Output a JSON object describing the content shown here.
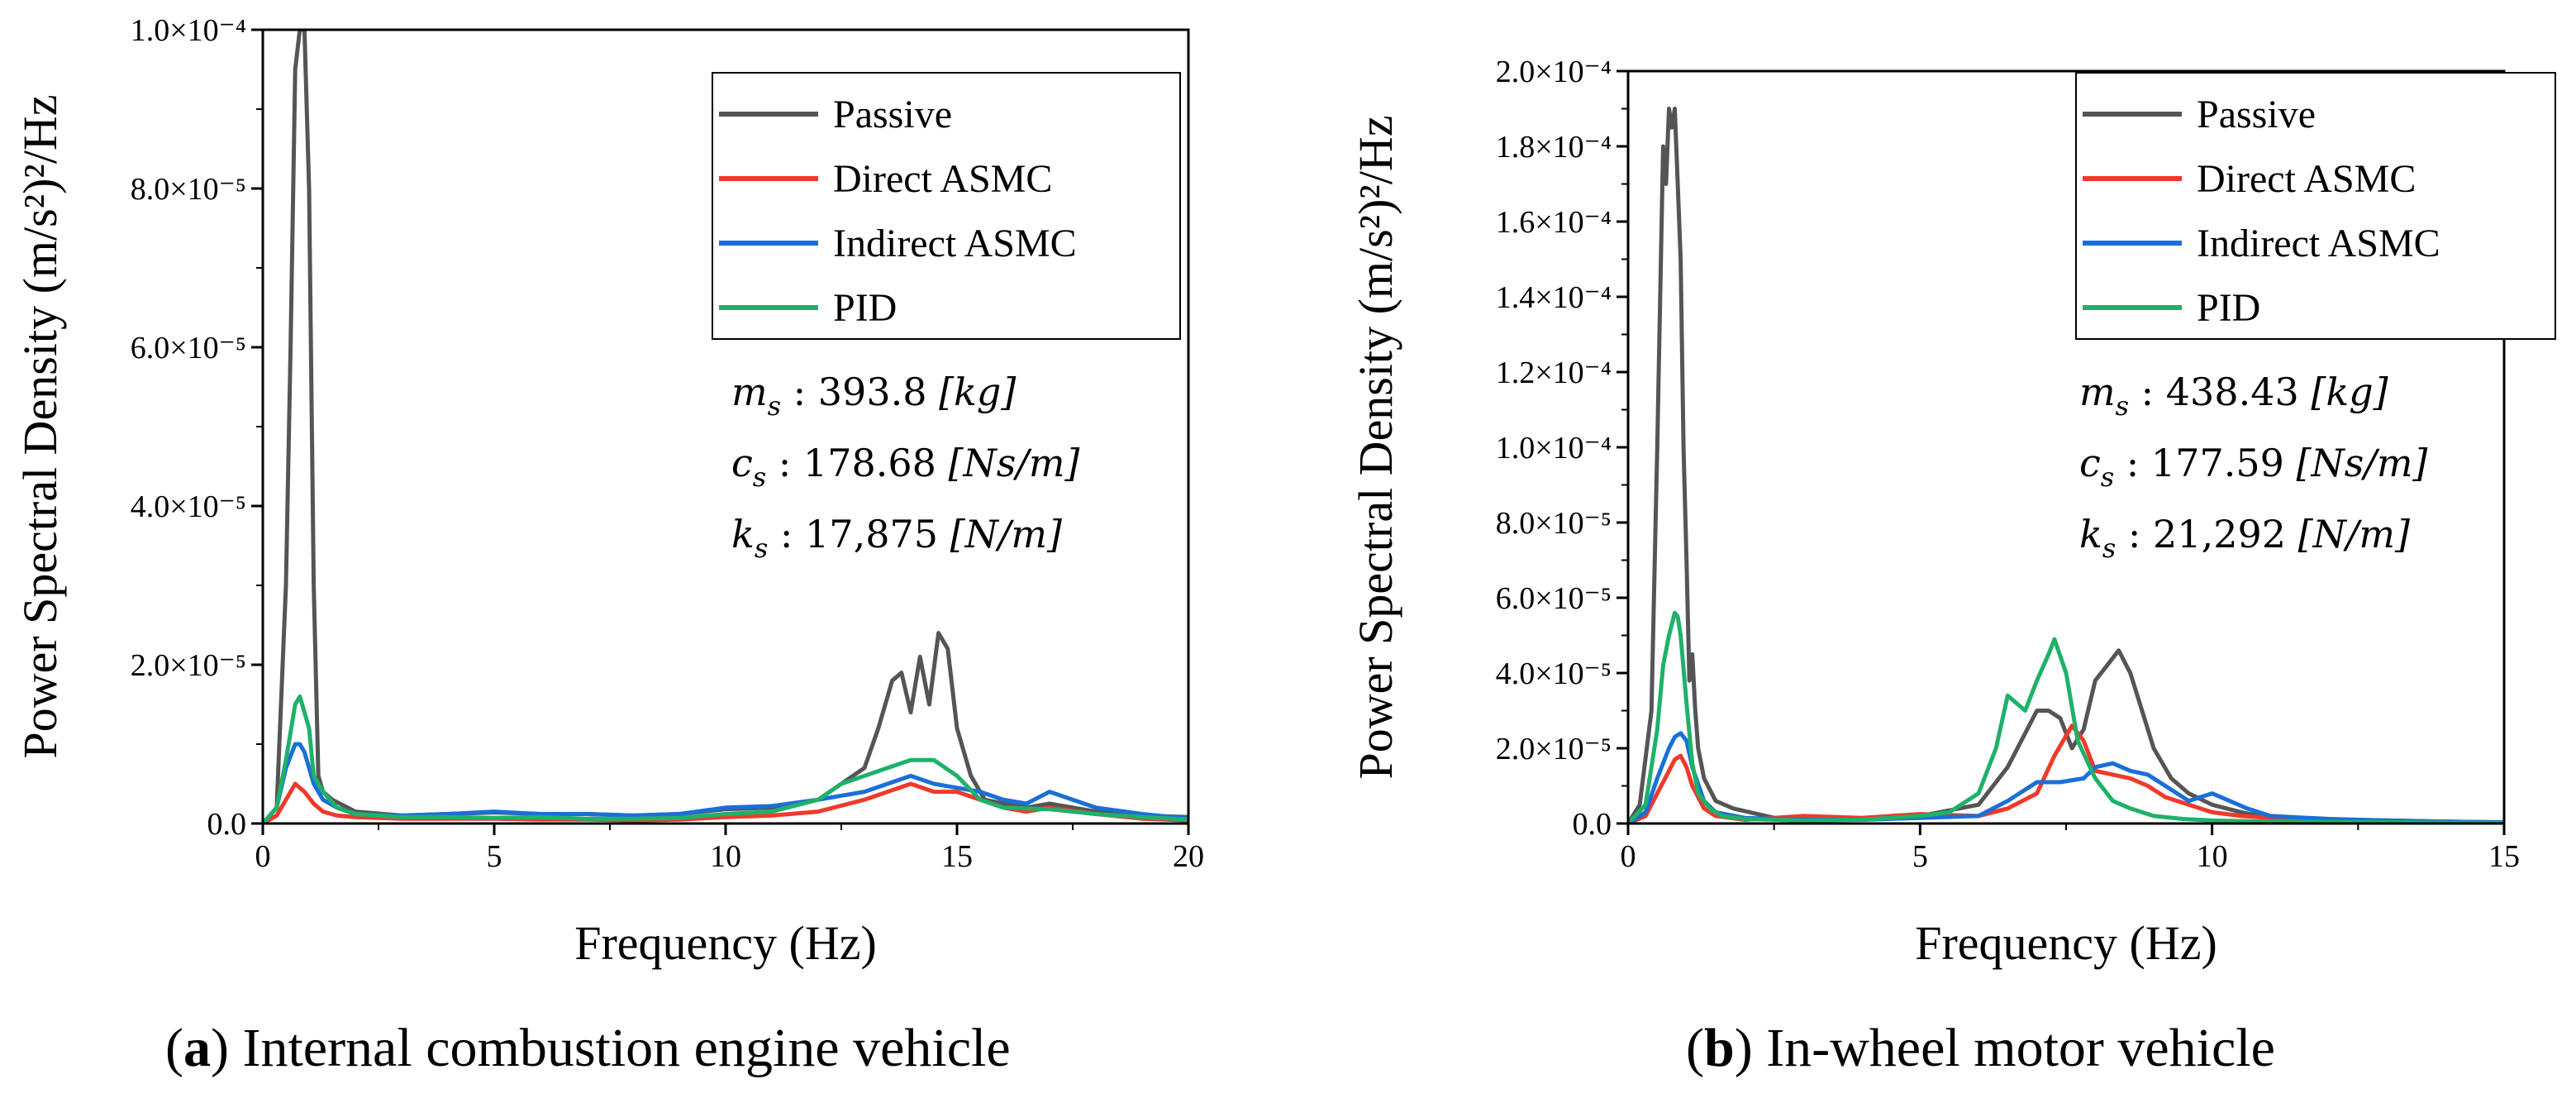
{
  "chart_data": [
    {
      "type": "line",
      "panel_label": "a",
      "caption": "Internal combustion engine vehicle",
      "xlabel": "Frequency (Hz)",
      "ylabel": "Power Spectral Density (m/s²)²/Hz",
      "xlim": [
        0,
        20
      ],
      "ylim": [
        0,
        0.0001
      ],
      "xticks": [
        0,
        5,
        10,
        15,
        20
      ],
      "xtick_labels": [
        "0",
        "5",
        "10",
        "15",
        "20"
      ],
      "yticks": [
        0,
        2e-05,
        4e-05,
        6e-05,
        8e-05,
        0.0001
      ],
      "ytick_labels": [
        "0.0",
        "2.0×10⁻⁵",
        "4.0×10⁻⁵",
        "6.0×10⁻⁵",
        "8.0×10⁻⁵",
        "1.0×10⁻⁴"
      ],
      "legend_position": "top-right",
      "parameters": [
        {
          "symbol": "m",
          "sub": "s",
          "value": "393.8",
          "unit": "[kg]"
        },
        {
          "symbol": "c",
          "sub": "s",
          "value": "178.68",
          "unit": "[Ns/m]"
        },
        {
          "symbol": "k",
          "sub": "s",
          "value": "17,875",
          "unit": "[N/m]"
        }
      ],
      "series": [
        {
          "name": "Passive",
          "color": "#555555",
          "x": [
            0,
            0.3,
            0.5,
            0.6,
            0.7,
            0.8,
            0.9,
            1.0,
            1.1,
            1.2,
            1.3,
            1.5,
            2.0,
            3,
            4,
            5,
            6,
            7,
            8,
            9,
            10,
            11,
            12,
            12.5,
            13,
            13.3,
            13.6,
            13.8,
            14.0,
            14.2,
            14.4,
            14.6,
            14.8,
            15.0,
            15.3,
            15.6,
            16.0,
            16.5,
            17,
            18,
            19,
            20
          ],
          "y": [
            0,
            2e-06,
            3e-05,
            6e-05,
            9.5e-05,
            0.0001,
            0.0001,
            8e-05,
            3e-05,
            6e-06,
            4e-06,
            3e-06,
            1.5e-06,
            1e-06,
            1.2e-06,
            1.4e-06,
            1.2e-06,
            1.2e-06,
            1e-06,
            1.2e-06,
            1.8e-06,
            2e-06,
            3e-06,
            5e-06,
            7e-06,
            1.2e-05,
            1.8e-05,
            1.9e-05,
            1.4e-05,
            2.1e-05,
            1.5e-05,
            2.4e-05,
            2.2e-05,
            1.2e-05,
            6e-06,
            3e-06,
            2.5e-06,
            2e-06,
            2.5e-06,
            1.5e-06,
            1e-06,
            8e-07
          ]
        },
        {
          "name": "Direct ASMC",
          "color": "#f0392b",
          "x": [
            0,
            0.3,
            0.5,
            0.7,
            0.9,
            1.1,
            1.3,
            1.6,
            2.0,
            3,
            4,
            5,
            6,
            7,
            8,
            9,
            10,
            11,
            12,
            13,
            13.5,
            14,
            14.5,
            15,
            15.5,
            16,
            16.5,
            17,
            18,
            19,
            20
          ],
          "y": [
            0,
            1e-06,
            3e-06,
            5e-06,
            4e-06,
            2.5e-06,
            1.5e-06,
            1e-06,
            8e-07,
            6e-07,
            6e-07,
            6e-07,
            5e-07,
            5e-07,
            4e-07,
            5e-07,
            8e-07,
            1e-06,
            1.5e-06,
            3e-06,
            4e-06,
            5e-06,
            4e-06,
            4e-06,
            3e-06,
            2e-06,
            1.5e-06,
            2e-06,
            1.2e-06,
            6e-07,
            4e-07
          ]
        },
        {
          "name": "Indirect ASMC",
          "color": "#1a6fd8",
          "x": [
            0,
            0.3,
            0.5,
            0.7,
            0.8,
            0.9,
            1.1,
            1.3,
            1.6,
            2.0,
            3,
            4,
            5,
            6,
            7,
            8,
            9,
            10,
            11,
            12,
            13,
            13.5,
            14,
            14.5,
            15,
            15.5,
            16,
            16.5,
            17,
            17.5,
            18,
            19,
            20
          ],
          "y": [
            0,
            2e-06,
            7e-06,
            1e-05,
            1e-05,
            9e-06,
            5e-06,
            3e-06,
            2e-06,
            1.2e-06,
            1e-06,
            1.2e-06,
            1.5e-06,
            1.2e-06,
            1.2e-06,
            1e-06,
            1.2e-06,
            2e-06,
            2.2e-06,
            3e-06,
            4e-06,
            5e-06,
            6e-06,
            5e-06,
            4.5e-06,
            4e-06,
            3e-06,
            2.5e-06,
            4e-06,
            3e-06,
            2e-06,
            1.2e-06,
            6e-07
          ]
        },
        {
          "name": "PID",
          "color": "#1fb16a",
          "x": [
            0,
            0.3,
            0.5,
            0.7,
            0.8,
            0.9,
            1.0,
            1.1,
            1.3,
            1.6,
            2.0,
            3,
            4,
            5,
            6,
            7,
            8,
            9,
            10,
            11,
            12,
            12.5,
            13,
            13.5,
            14,
            14.5,
            15,
            15.5,
            16,
            17,
            18,
            19,
            20
          ],
          "y": [
            0,
            2e-06,
            8e-06,
            1.5e-05,
            1.6e-05,
            1.4e-05,
            1.2e-05,
            6e-06,
            4e-06,
            2e-06,
            1.2e-06,
            8e-07,
            8e-07,
            7e-07,
            8e-07,
            6e-07,
            6e-07,
            7e-07,
            1.2e-06,
            1.5e-06,
            3e-06,
            5e-06,
            6e-06,
            7e-06,
            8e-06,
            8e-06,
            6e-06,
            3e-06,
            2e-06,
            1.8e-06,
            1.2e-06,
            8e-07,
            5e-07
          ]
        }
      ]
    },
    {
      "type": "line",
      "panel_label": "b",
      "caption": "In-wheel motor vehicle",
      "xlabel": "Frequency (Hz)",
      "ylabel": "Power Spectral Density (m/s²)²/Hz",
      "xlim": [
        0,
        15
      ],
      "ylim": [
        0,
        0.0002
      ],
      "xticks": [
        0,
        5,
        10,
        15
      ],
      "xtick_labels": [
        "0",
        "5",
        "10",
        "15"
      ],
      "yticks": [
        0,
        2e-05,
        4e-05,
        6e-05,
        8e-05,
        0.0001,
        0.00012,
        0.00014,
        0.00016,
        0.00018,
        0.0002
      ],
      "ytick_labels": [
        "0.0",
        "2.0×10⁻⁵",
        "4.0×10⁻⁵",
        "6.0×10⁻⁵",
        "8.0×10⁻⁵",
        "1.0×10⁻⁴",
        "1.2×10⁻⁴",
        "1.4×10⁻⁴",
        "1.6×10⁻⁴",
        "1.8×10⁻⁴",
        "2.0×10⁻⁴"
      ],
      "legend_position": "top-right",
      "parameters": [
        {
          "symbol": "m",
          "sub": "s",
          "value": "438.43",
          "unit": "[kg]"
        },
        {
          "symbol": "c",
          "sub": "s",
          "value": "177.59",
          "unit": "[Ns/m]"
        },
        {
          "symbol": "k",
          "sub": "s",
          "value": "21,292",
          "unit": "[N/m]"
        }
      ],
      "series": [
        {
          "name": "Passive",
          "color": "#555555",
          "x": [
            0,
            0.2,
            0.4,
            0.5,
            0.6,
            0.65,
            0.7,
            0.75,
            0.8,
            0.85,
            0.9,
            0.95,
            1.0,
            1.05,
            1.1,
            1.15,
            1.2,
            1.3,
            1.5,
            1.8,
            2.5,
            3,
            4,
            5,
            6,
            6.5,
            7.0,
            7.2,
            7.4,
            7.6,
            7.8,
            8.0,
            8.2,
            8.4,
            8.6,
            8.8,
            9.0,
            9.3,
            9.6,
            10,
            10.5,
            11,
            12,
            13,
            14,
            15
          ],
          "y": [
            0,
            5e-06,
            3e-05,
            0.0001,
            0.00018,
            0.00017,
            0.00019,
            0.000185,
            0.00019,
            0.00017,
            0.00015,
            0.0001,
            7e-05,
            3.8e-05,
            4.5e-05,
            3e-05,
            2e-05,
            1.2e-05,
            6e-06,
            4e-06,
            1.5e-06,
            1.2e-06,
            1e-06,
            2e-06,
            5e-06,
            1.5e-05,
            3e-05,
            3e-05,
            2.8e-05,
            2e-05,
            2.5e-05,
            3.8e-05,
            4.2e-05,
            4.6e-05,
            4e-05,
            3e-05,
            2e-05,
            1.2e-05,
            8e-06,
            5e-06,
            3e-06,
            1.5e-06,
            1e-06,
            8e-07,
            5e-07,
            3e-07
          ]
        },
        {
          "name": "Direct ASMC",
          "color": "#f0392b",
          "x": [
            0,
            0.3,
            0.5,
            0.7,
            0.8,
            0.9,
            1.0,
            1.1,
            1.3,
            1.5,
            2.0,
            3,
            4,
            5,
            6,
            6.5,
            7.0,
            7.3,
            7.6,
            7.8,
            8.0,
            8.3,
            8.6,
            8.9,
            9.2,
            9.6,
            10,
            10.5,
            11,
            12,
            13,
            14,
            15
          ],
          "y": [
            0,
            2e-06,
            8e-06,
            1.4e-05,
            1.7e-05,
            1.8e-05,
            1.5e-05,
            1e-05,
            4e-06,
            2e-06,
            1e-06,
            2e-06,
            1.5e-06,
            2.5e-06,
            2e-06,
            4e-06,
            8e-06,
            1.8e-05,
            2.6e-05,
            2.2e-05,
            1.4e-05,
            1.3e-05,
            1.2e-05,
            1e-05,
            7e-06,
            5e-06,
            3e-06,
            2e-06,
            1.5e-06,
            1e-06,
            8e-07,
            5e-07,
            3e-07
          ]
        },
        {
          "name": "Indirect ASMC",
          "color": "#1a6fd8",
          "x": [
            0,
            0.3,
            0.5,
            0.7,
            0.8,
            0.9,
            1.0,
            1.1,
            1.3,
            1.5,
            2.0,
            3,
            4,
            5,
            6,
            6.5,
            7.0,
            7.4,
            7.8,
            8.0,
            8.3,
            8.6,
            8.9,
            9.2,
            9.6,
            10.0,
            10.3,
            10.6,
            11,
            12,
            13,
            14,
            15
          ],
          "y": [
            0,
            3e-06,
            1.2e-05,
            2e-05,
            2.3e-05,
            2.4e-05,
            2.2e-05,
            1.5e-05,
            6e-06,
            3e-06,
            1.5e-06,
            1e-06,
            1e-06,
            1.5e-06,
            2e-06,
            6e-06,
            1.1e-05,
            1.1e-05,
            1.2e-05,
            1.5e-05,
            1.6e-05,
            1.4e-05,
            1.3e-05,
            1e-05,
            6e-06,
            8e-06,
            6e-06,
            4e-06,
            2e-06,
            1.2e-06,
            8e-07,
            5e-07,
            3e-07
          ]
        },
        {
          "name": "PID",
          "color": "#1fb16a",
          "x": [
            0,
            0.3,
            0.5,
            0.6,
            0.7,
            0.8,
            0.85,
            0.9,
            1.0,
            1.1,
            1.2,
            1.4,
            1.6,
            2.0,
            3,
            4,
            5,
            5.5,
            6.0,
            6.3,
            6.5,
            6.8,
            7.0,
            7.2,
            7.3,
            7.5,
            7.7,
            8.0,
            8.3,
            8.6,
            9.0,
            9.5,
            10,
            11,
            12,
            13,
            14,
            15
          ],
          "y": [
            0,
            5e-06,
            2.5e-05,
            4.2e-05,
            5e-05,
            5.6e-05,
            5.5e-05,
            5e-05,
            3.2e-05,
            1.6e-05,
            8e-06,
            4e-06,
            2e-06,
            1.2e-06,
            8e-07,
            1e-06,
            2e-06,
            3e-06,
            8e-06,
            2e-05,
            3.4e-05,
            3e-05,
            3.8e-05,
            4.5e-05,
            4.9e-05,
            4e-05,
            2.2e-05,
            1.2e-05,
            6e-06,
            4e-06,
            2e-06,
            1.2e-06,
            8e-07,
            5e-07,
            4e-07,
            3e-07,
            2e-07,
            1e-07
          ]
        }
      ]
    }
  ]
}
